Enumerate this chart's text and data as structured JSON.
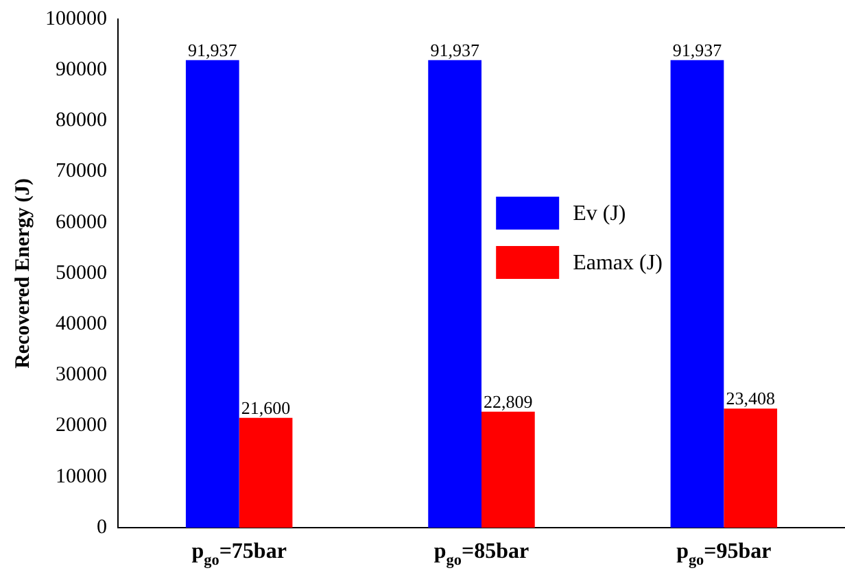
{
  "chart_data": {
    "type": "bar",
    "ylabel": "Recovered Energy (J)",
    "categories": [
      "p$_{go}$=75bar",
      "p$_{go}$=85bar",
      "p$_{go}$=95bar"
    ],
    "series": [
      {
        "name": "Ev (J)",
        "color": "#0000ff",
        "values": [
          91937,
          91937,
          91937
        ],
        "value_labels": [
          "91,937",
          "91,937",
          "91,937"
        ]
      },
      {
        "name": "Eamax (J)",
        "color": "#ff0000",
        "values": [
          21600,
          22809,
          23408
        ],
        "value_labels": [
          "21,600",
          "22,809",
          "23,408"
        ]
      }
    ],
    "ylim": [
      0,
      100000
    ],
    "yticks": [
      0,
      10000,
      20000,
      30000,
      40000,
      50000,
      60000,
      70000,
      80000,
      90000,
      100000
    ],
    "grid": false,
    "legend": "right"
  }
}
